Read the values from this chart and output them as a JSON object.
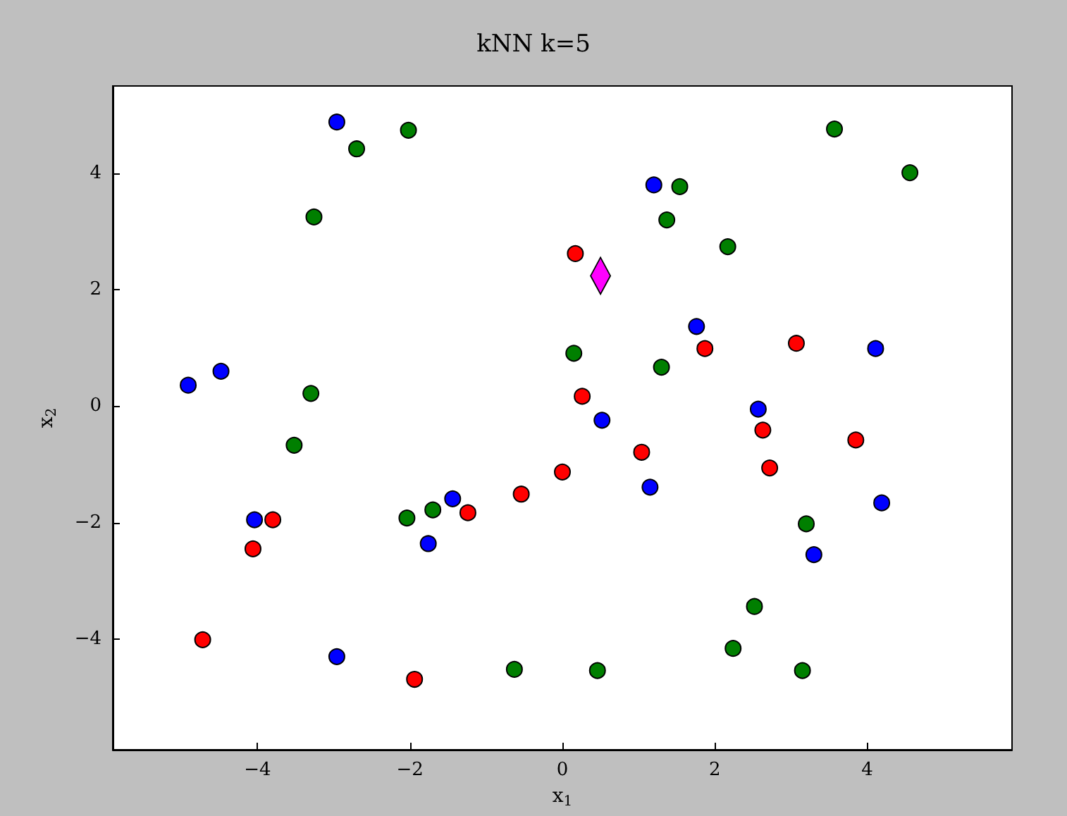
{
  "chart_data": {
    "type": "scatter",
    "title": "kNN k=5",
    "xlabel": "x$_{1}$",
    "ylabel": "x$_{2}$",
    "xlim": [
      -5.9,
      5.9
    ],
    "ylim": [
      -5.9,
      5.5
    ],
    "xticks": [
      {
        "value": -4,
        "label": "−4"
      },
      {
        "value": -2,
        "label": "−2"
      },
      0,
      2,
      4
    ],
    "yticks": [
      {
        "value": -4,
        "label": "−4"
      },
      {
        "value": -2,
        "label": "−2"
      },
      0,
      2,
      4
    ],
    "grid": false,
    "marker": "circle",
    "series": [
      {
        "color": "#0000ff",
        "x": [
          -2.96,
          1.2,
          1.76,
          -4.91,
          -4.48,
          0.52,
          2.57,
          4.11,
          1.15,
          4.19,
          3.3,
          -1.44,
          -1.76,
          -4.04,
          -2.96
        ],
        "values": [
          4.88,
          3.8,
          1.37,
          0.36,
          0.6,
          -0.24,
          -0.05,
          0.99,
          -1.39,
          -1.66,
          -2.55,
          -1.59,
          -2.36,
          -1.95,
          -4.3
        ]
      },
      {
        "color": "#007f00",
        "x": [
          -2.02,
          -2.7,
          -3.26,
          3.57,
          4.56,
          1.54,
          1.37,
          2.17,
          0.15,
          1.3,
          -3.3,
          -3.52,
          -2.04,
          -1.7,
          3.2,
          2.52,
          2.24,
          3.15,
          0.46,
          -0.63
        ],
        "values": [
          4.74,
          4.42,
          3.25,
          4.76,
          4.01,
          3.77,
          3.2,
          2.74,
          0.91,
          0.67,
          0.22,
          -0.67,
          -1.92,
          -1.78,
          -2.02,
          -3.44,
          -4.16,
          -4.54,
          -4.54,
          -4.52
        ]
      },
      {
        "color": "#ff0000",
        "x": [
          0.17,
          3.07,
          1.87,
          0.26,
          1.04,
          0,
          -0.54,
          -1.24,
          -3.8,
          -4.06,
          -4.72,
          -1.94,
          2.63,
          2.72,
          3.85
        ],
        "values": [
          2.62,
          1.08,
          0.99,
          0.17,
          -0.79,
          -1.13,
          -1.51,
          -1.83,
          -1.95,
          -2.45,
          -4.01,
          -4.69,
          -0.41,
          -1.06,
          -0.58
        ]
      },
      {
        "color": "#ff00ff",
        "marker": "diamond",
        "x": [
          0.5
        ],
        "values": [
          2.24
        ]
      }
    ]
  }
}
